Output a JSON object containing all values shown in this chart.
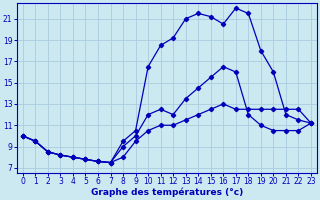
{
  "xlabel": "Graphe des températures (°c)",
  "bg_color": "#cce8f0",
  "grid_color": "#aaccdd",
  "line_color": "#0000bb",
  "xlim": [
    -0.5,
    23.5
  ],
  "ylim": [
    6.5,
    22.5
  ],
  "yticks": [
    7,
    9,
    11,
    13,
    15,
    17,
    19,
    21
  ],
  "xticks": [
    0,
    1,
    2,
    3,
    4,
    5,
    6,
    7,
    8,
    9,
    10,
    11,
    12,
    13,
    14,
    15,
    16,
    17,
    18,
    19,
    20,
    21,
    22,
    23
  ],
  "line1_x": [
    0,
    1,
    2,
    3,
    4,
    5,
    6,
    7,
    8,
    9,
    10,
    11,
    12,
    13,
    14,
    15,
    16,
    17,
    18,
    19,
    20,
    21,
    22,
    23
  ],
  "line1_y": [
    10.0,
    9.5,
    8.5,
    8.2,
    8.0,
    7.8,
    7.6,
    7.5,
    8.0,
    9.5,
    10.5,
    11.0,
    11.0,
    11.5,
    12.0,
    12.5,
    13.0,
    12.5,
    12.5,
    12.5,
    12.5,
    12.5,
    12.5,
    11.2
  ],
  "line2_x": [
    0,
    1,
    2,
    3,
    4,
    5,
    6,
    7,
    8,
    9,
    10,
    11,
    12,
    13,
    14,
    15,
    16,
    17,
    18,
    19,
    20,
    21,
    22,
    23
  ],
  "line2_y": [
    10.0,
    9.5,
    8.5,
    8.2,
    8.0,
    7.8,
    7.6,
    7.5,
    9.0,
    10.0,
    12.0,
    12.5,
    12.0,
    13.5,
    14.5,
    15.5,
    16.5,
    16.0,
    12.0,
    11.0,
    10.5,
    10.5,
    10.5,
    11.2
  ],
  "line3_x": [
    0,
    1,
    2,
    3,
    4,
    5,
    6,
    7,
    8,
    9,
    10,
    11,
    12,
    13,
    14,
    15,
    16,
    17,
    18,
    19,
    20,
    21,
    22,
    23
  ],
  "line3_y": [
    10.0,
    9.5,
    8.5,
    8.2,
    8.0,
    7.8,
    7.6,
    7.5,
    9.5,
    10.5,
    16.5,
    18.5,
    19.2,
    21.0,
    21.5,
    21.2,
    20.5,
    22.0,
    21.5,
    18.0,
    16.0,
    12.0,
    11.5,
    11.2
  ]
}
